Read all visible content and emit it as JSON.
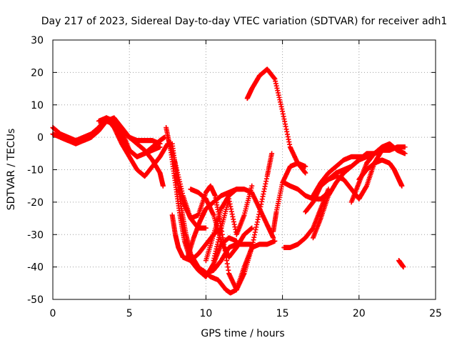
{
  "chart_data": {
    "type": "scatter",
    "title": "Day 217 of 2023, Sidereal Day-to-day VTEC variation (SDTVAR) for receiver adh1",
    "xlabel": "GPS time / hours",
    "ylabel": "SDTVAR / TECUs",
    "xlim": [
      0,
      25
    ],
    "ylim": [
      -50,
      30
    ],
    "x_ticks": [
      0,
      5,
      10,
      15,
      20,
      25
    ],
    "y_ticks": [
      -50,
      -40,
      -30,
      -20,
      -10,
      0,
      10,
      20,
      30
    ],
    "grid": true,
    "legend": "none",
    "marker": "+",
    "series_color": "#ff0000",
    "series": [
      {
        "x": [
          0.0,
          0.5,
          1.0,
          1.5,
          2.0,
          2.5,
          3.0,
          3.5,
          4.0,
          4.5,
          5.0,
          5.5,
          6.0,
          6.5,
          7.0
        ],
        "y": [
          3,
          1,
          0,
          -1,
          -1,
          0,
          2,
          5,
          6,
          3,
          0,
          -1,
          -1,
          -1,
          -2
        ]
      },
      {
        "x": [
          0.0,
          0.5,
          1.0,
          1.5,
          2.0,
          2.5,
          3.0,
          3.5,
          4.0,
          4.5,
          5.0,
          5.5,
          6.0,
          6.5,
          7.0,
          7.3
        ],
        "y": [
          1,
          0,
          -1,
          -2,
          -1,
          0,
          3,
          6,
          5,
          2,
          -4,
          -6,
          -5,
          -3,
          -1,
          0
        ]
      },
      {
        "x": [
          0.5,
          1.0,
          1.5,
          2.0,
          2.5,
          3.0,
          3.5,
          4.0,
          4.5,
          5.0,
          5.5,
          6.0,
          6.5,
          7.0
        ],
        "y": [
          0,
          -1,
          -1,
          0,
          1,
          3,
          5,
          4,
          0,
          -4,
          -6,
          -5,
          -4,
          -3
        ]
      },
      {
        "x": [
          3.0,
          3.5,
          4.0,
          4.5,
          5.0,
          5.5,
          6.0,
          6.5,
          7.0,
          7.5
        ],
        "y": [
          5,
          6,
          3,
          -2,
          -6,
          -10,
          -12,
          -9,
          -6,
          -2
        ]
      },
      {
        "x": [
          3.5,
          4.0,
          4.5,
          5.0,
          5.5,
          6.0,
          6.5,
          7.0,
          7.2
        ],
        "y": [
          6,
          4,
          2,
          0,
          -2,
          -4,
          -7,
          -11,
          -15
        ]
      },
      {
        "x": [
          7.4,
          7.7,
          8.0,
          8.3,
          8.6,
          9.0,
          9.5,
          10.0,
          10.5,
          11.0,
          11.5,
          12.0
        ],
        "y": [
          3,
          -4,
          -14,
          -24,
          -32,
          -38,
          -41,
          -43,
          -39,
          -33,
          -31,
          -32
        ]
      },
      {
        "x": [
          7.5,
          8.0,
          8.5,
          9.0,
          9.5,
          10.0
        ],
        "y": [
          0,
          -8,
          -18,
          -25,
          -28,
          -28
        ]
      },
      {
        "x": [
          7.8,
          8.1,
          8.4,
          8.7,
          9.0,
          9.5,
          10.0,
          10.5,
          11.0,
          11.5,
          12.0,
          12.5,
          13.0
        ],
        "y": [
          -2,
          -12,
          -22,
          -30,
          -36,
          -40,
          -42,
          -41,
          -38,
          -34,
          -33,
          -33,
          -33
        ]
      },
      {
        "x": [
          7.8,
          8.0,
          8.2,
          8.5,
          9.0,
          9.5,
          10.0,
          10.5,
          11.0
        ],
        "y": [
          -24,
          -30,
          -34,
          -37,
          -38,
          -36,
          -33,
          -30,
          -28
        ]
      },
      {
        "x": [
          8.0,
          8.5,
          9.0,
          9.5,
          10.0,
          10.3,
          10.6,
          11.0,
          11.5,
          12.0,
          12.5,
          13.0,
          13.5,
          14.0,
          14.5
        ],
        "y": [
          -12,
          -20,
          -25,
          -24,
          -17,
          -15,
          -18,
          -28,
          -42,
          -47,
          -40,
          -34,
          -33,
          -33,
          -32
        ]
      },
      {
        "x": [
          9.0,
          9.5,
          10.0,
          10.5,
          11.0,
          11.5,
          12.0,
          12.5,
          13.0
        ],
        "y": [
          -16,
          -17,
          -19,
          -24,
          -32,
          -37,
          -34,
          -30,
          -28
        ]
      },
      {
        "x": [
          8.8,
          9.2,
          9.6,
          10.0,
          10.5,
          11.0,
          11.5,
          12.0
        ],
        "y": [
          -37,
          -31,
          -26,
          -22,
          -20,
          -18,
          -17,
          -16
        ]
      },
      {
        "x": [
          9.8,
          10.3,
          10.8,
          11.3,
          11.6,
          12.0,
          12.5,
          13.0,
          13.5,
          14.0,
          14.3
        ],
        "y": [
          -41,
          -43,
          -44,
          -47,
          -48,
          -47,
          -42,
          -34,
          -23,
          -12,
          -5
        ]
      },
      {
        "x": [
          10.0,
          10.5,
          11.0,
          11.5,
          12.0,
          12.5,
          13.0,
          13.5,
          14.0,
          14.4
        ],
        "y": [
          -38,
          -30,
          -22,
          -18,
          -16,
          -16,
          -17,
          -22,
          -27,
          -31
        ]
      },
      {
        "x": [
          10.5,
          11.0,
          11.5,
          12.0,
          12.5,
          13.0
        ],
        "y": [
          -38,
          -28,
          -19,
          -30,
          -24,
          -15
        ]
      },
      {
        "x": [
          12.7,
          13.0,
          13.5,
          14.0,
          14.5,
          15.0,
          15.5,
          16.0,
          16.5
        ],
        "y": [
          12,
          15,
          19,
          21,
          18,
          8,
          -3,
          -8,
          -11
        ]
      },
      {
        "x": [
          14.4,
          14.6,
          15.0,
          15.5,
          16.0,
          16.5
        ],
        "y": [
          -29,
          -23,
          -14,
          -9,
          -8,
          -9
        ]
      },
      {
        "x": [
          15.1,
          15.5,
          16.0,
          16.5,
          17.0,
          17.5,
          18.0
        ],
        "y": [
          -14,
          -15,
          -16,
          -18,
          -19,
          -19,
          -17
        ]
      },
      {
        "x": [
          15.1,
          15.5,
          16.0,
          16.5,
          17.0,
          17.5,
          18.0
        ],
        "y": [
          -34,
          -34,
          -33,
          -31,
          -28,
          -22,
          -16
        ]
      },
      {
        "x": [
          16.5,
          17.0,
          17.5,
          18.0,
          18.5,
          19.0,
          19.5,
          20.0,
          20.5,
          21.0,
          21.5,
          22.0
        ],
        "y": [
          -23,
          -20,
          -15,
          -13,
          -11,
          -10,
          -9,
          -7,
          -5,
          -5,
          -4,
          -3
        ]
      },
      {
        "x": [
          17.0,
          17.5,
          18.0,
          18.5,
          19.0,
          19.5,
          20.0,
          20.5,
          21.0,
          21.5,
          22.0
        ],
        "y": [
          -18,
          -14,
          -11,
          -9,
          -7,
          -6,
          -6,
          -6,
          -5,
          -4,
          -3
        ]
      },
      {
        "x": [
          17.5,
          18.0,
          18.5,
          19.0,
          19.5,
          20.0,
          20.5,
          21.0,
          21.5
        ],
        "y": [
          -15,
          -13,
          -12,
          -13,
          -16,
          -19,
          -15,
          -8,
          -4
        ]
      },
      {
        "x": [
          17.0,
          17.5,
          18.0,
          18.5,
          19.0,
          19.5,
          20.0,
          20.5
        ],
        "y": [
          -31,
          -25,
          -18,
          -14,
          -11,
          -9,
          -7,
          -6
        ]
      },
      {
        "x": [
          19.5,
          20.0,
          20.5,
          21.0,
          21.5,
          22.0,
          22.5,
          23.0
        ],
        "y": [
          -20,
          -14,
          -8,
          -5,
          -4,
          -4,
          -3,
          -3
        ]
      },
      {
        "x": [
          20.0,
          20.5,
          21.0,
          21.5,
          22.0,
          22.3,
          22.6,
          22.8
        ],
        "y": [
          -13,
          -10,
          -8,
          -7,
          -8,
          -10,
          -13,
          -15
        ]
      },
      {
        "x": [
          20.5,
          21.0,
          21.5,
          22.0,
          22.5,
          23.0
        ],
        "y": [
          -8,
          -5,
          -3,
          -2,
          -4,
          -5
        ]
      },
      {
        "x": [
          22.6,
          22.9
        ],
        "y": [
          -38,
          -40
        ]
      }
    ]
  }
}
